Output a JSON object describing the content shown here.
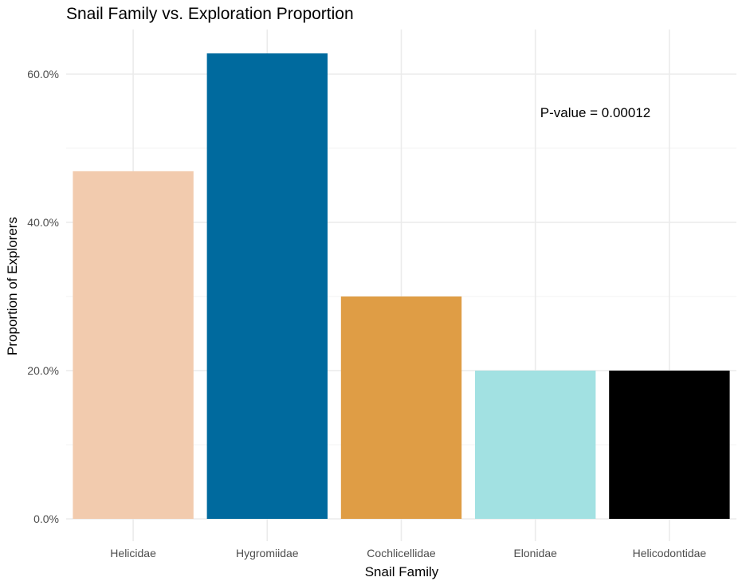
{
  "chart_data": {
    "type": "bar",
    "title": "Snail Family vs. Exploration Proportion",
    "xlabel": "Snail Family",
    "ylabel": "Proportion of Explorers",
    "categories": [
      "Helicidae",
      "Hygromiidae",
      "Cochlicellidae",
      "Elonidae",
      "Helicodontidae"
    ],
    "values": [
      0.469,
      0.628,
      0.3,
      0.2,
      0.2
    ],
    "colors": [
      "#F2CBAE",
      "#006A9E",
      "#DF9D45",
      "#A2E1E2",
      "#000000"
    ],
    "ylim": [
      0,
      0.675
    ],
    "yticks": [
      0,
      0.2,
      0.4,
      0.6
    ],
    "ytick_labels": [
      "0.0%",
      "20.0%",
      "40.0%",
      "60.0%"
    ],
    "grid": true,
    "legend": "none",
    "annotation": "P-value = 0.00012"
  }
}
